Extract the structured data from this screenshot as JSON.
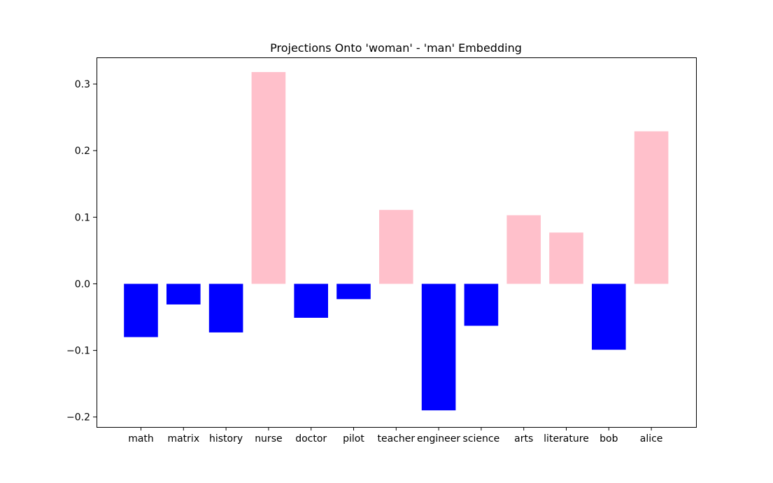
{
  "chart_data": {
    "type": "bar",
    "title": "Projections Onto 'woman' - 'man' Embedding",
    "xlabel": "",
    "ylabel": "",
    "categories": [
      "math",
      "matrix",
      "history",
      "nurse",
      "doctor",
      "pilot",
      "teacher",
      "engineer",
      "science",
      "arts",
      "literature",
      "bob",
      "alice"
    ],
    "values": [
      -0.08,
      -0.031,
      -0.073,
      0.318,
      -0.051,
      -0.023,
      0.111,
      -0.19,
      -0.063,
      0.103,
      0.077,
      -0.099,
      0.229
    ],
    "ylim": [
      -0.215,
      0.34
    ],
    "yticks": [
      -0.2,
      -0.1,
      0.0,
      0.1,
      0.2,
      0.3
    ],
    "ytick_labels": [
      "−0.2",
      "−0.1",
      "0.0",
      "0.1",
      "0.2",
      "0.3"
    ],
    "grid": false,
    "legend": "none",
    "colors": {
      "positive": "#ffc0cb",
      "negative": "#0000ff",
      "axis": "#000000"
    }
  }
}
